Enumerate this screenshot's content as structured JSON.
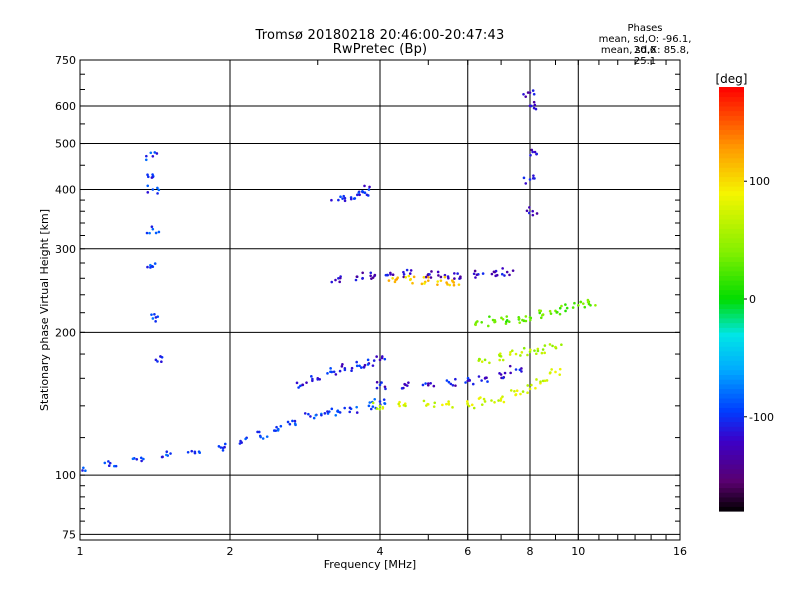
{
  "chart_data": {
    "type": "scatter",
    "title": "Tromsø 20180218 20:46:00-20:47:43",
    "subtitle": "RwPretec (Bp)",
    "xlabel": "Frequency [MHz]",
    "ylabel": "Stationary phase Virtual Height [km]",
    "x_scale": "log",
    "y_scale": "log",
    "xlim": [
      1,
      16
    ],
    "ylim": [
      73,
      750
    ],
    "xticks": [
      "1",
      "2",
      "4",
      "6",
      "8",
      "10",
      "16"
    ],
    "yticks": [
      "75",
      "100",
      "200",
      "300",
      "400",
      "500",
      "600",
      "750"
    ],
    "grid": true,
    "colorbar": {
      "label": "[deg]",
      "range": [
        -180,
        180
      ],
      "ticks": [
        "100",
        "0",
        "-100"
      ],
      "colormap": "rainbow"
    },
    "phase_stats": {
      "heading": "Phases",
      "o_line": "mean, sd,O: -96.1, 20.6",
      "x_line": "mean, sd,X: 85.8, 25.1"
    },
    "traces": [
      {
        "name": "",
        "x": [
          1.0,
          1.15,
          1.3,
          1.5,
          1.7,
          1.9,
          2.1,
          2.3,
          2.5,
          2.7,
          2.9,
          3.1,
          3.3,
          3.5,
          3.8,
          4.0
        ],
        "y": [
          103,
          106,
          108,
          110,
          112,
          115,
          118,
          121,
          125,
          130,
          133,
          135,
          136,
          138,
          140,
          143
        ],
        "phase": -95
      },
      {
        "name": "",
        "x": [
          2.8,
          3.0,
          3.2,
          3.4,
          3.6,
          3.8,
          4.0
        ],
        "y": [
          155,
          160,
          165,
          168,
          170,
          172,
          175
        ],
        "phase": -110
      },
      {
        "name": "",
        "x": [
          4.0,
          4.5,
          5.0,
          5.5,
          6.0,
          6.5,
          7.0,
          7.5,
          8.0,
          8.5,
          9.0
        ],
        "y": [
          140,
          140,
          141,
          141,
          141,
          143,
          145,
          148,
          152,
          158,
          165
        ],
        "phase": 75
      },
      {
        "name": "",
        "x": [
          4.0,
          4.5,
          5.0,
          5.5,
          6.0,
          6.5,
          7.0,
          7.5
        ],
        "y": [
          155,
          155,
          156,
          157,
          158,
          160,
          163,
          167
        ],
        "phase": -115
      },
      {
        "name": "",
        "x": [
          3.3,
          3.6,
          3.9,
          4.2,
          4.6,
          5.0,
          5.4,
          5.8,
          6.3,
          6.8,
          7.2
        ],
        "y": [
          260,
          262,
          263,
          265,
          266,
          265,
          264,
          262,
          265,
          268,
          268
        ],
        "phase": -120
      },
      {
        "name": "",
        "x": [
          4.3,
          4.6,
          5.0,
          5.3,
          5.6
        ],
        "y": [
          258,
          258,
          257,
          257,
          256
        ],
        "phase": 110
      },
      {
        "name": "",
        "x": [
          6.4,
          6.8,
          7.2,
          7.6,
          8.0,
          8.5,
          9.0,
          9.5,
          10.0,
          10.5
        ],
        "y": [
          210,
          212,
          212,
          213,
          215,
          218,
          222,
          225,
          228,
          232
        ],
        "phase": 30
      },
      {
        "name": "",
        "x": [
          6.5,
          7.0,
          7.5,
          8.0,
          8.5,
          9.0
        ],
        "y": [
          175,
          178,
          180,
          182,
          184,
          186
        ],
        "phase": 60
      },
      {
        "name": "",
        "x": [
          3.3,
          3.5,
          3.7,
          3.8
        ],
        "y": [
          380,
          385,
          395,
          400
        ],
        "phase": -105
      },
      {
        "name": "",
        "x": [
          1.4,
          1.4,
          1.4,
          1.4,
          1.4,
          1.42,
          1.42
        ],
        "y": [
          470,
          425,
          400,
          330,
          275,
          215,
          175
        ],
        "phase": -95
      },
      {
        "name": "",
        "x": [
          8.0,
          8.05,
          8.1,
          8.0,
          8.1
        ],
        "y": [
          640,
          600,
          480,
          420,
          360
        ],
        "phase": -120
      }
    ]
  }
}
